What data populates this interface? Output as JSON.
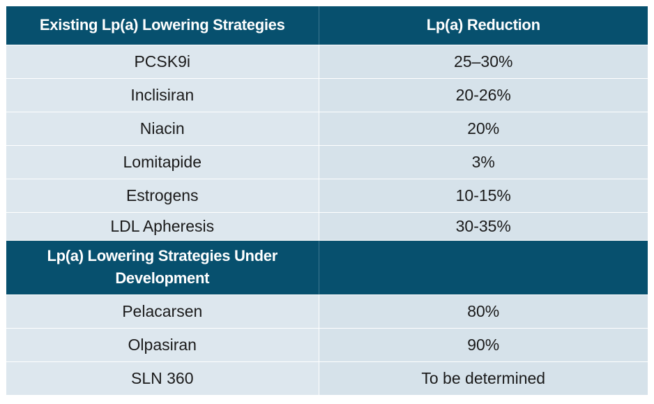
{
  "header": {
    "col1": "Existing Lp(a) Lowering Strategies",
    "col2": "Lp(a) Reduction"
  },
  "existing": [
    {
      "strategy": "PCSK9i",
      "reduction": "25–30%"
    },
    {
      "strategy": "Inclisiran",
      "reduction": "20-26%"
    },
    {
      "strategy": "Niacin",
      "reduction": "20%"
    },
    {
      "strategy": "Lomitapide",
      "reduction": "3%"
    },
    {
      "strategy": "Estrogens",
      "reduction": "10-15%"
    },
    {
      "strategy": "LDL Apheresis",
      "reduction": "30-35%"
    }
  ],
  "development_header": {
    "col1": "Lp(a) Lowering Strategies Under Development",
    "col2": ""
  },
  "development": [
    {
      "strategy": "Pelacarsen",
      "reduction": "80%"
    },
    {
      "strategy": "Olpasiran",
      "reduction": "90%"
    },
    {
      "strategy": "SLN 360",
      "reduction": "To be determined"
    }
  ]
}
